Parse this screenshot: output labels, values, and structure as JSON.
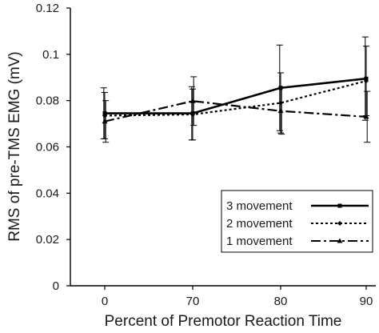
{
  "chart_data": {
    "type": "line",
    "title": "",
    "xlabel": "Percent of Premotor Reaction Time",
    "ylabel": "RMS of pre-TMS EMG (mV)",
    "categories": [
      "0",
      "70",
      "80",
      "90"
    ],
    "ylim": [
      0,
      0.12
    ],
    "yticks": [
      0,
      0.02,
      0.04,
      0.06,
      0.08,
      0.1,
      0.12
    ],
    "ytick_labels": [
      "0",
      "0.02",
      "0.04",
      "0.06",
      "0.08",
      "0.1",
      "0.12"
    ],
    "grid": false,
    "legend_position": "bottom-right",
    "series": [
      {
        "name": "3 movement",
        "values": [
          0.0745,
          0.0745,
          0.0855,
          0.0895
        ],
        "error": [
          0.011,
          0.0115,
          0.0185,
          0.018
        ],
        "line_style": "solid",
        "marker": "square",
        "color": "#000000"
      },
      {
        "name": "2 movement",
        "values": [
          0.0735,
          0.074,
          0.079,
          0.0885
        ],
        "error": [
          0.01,
          0.011,
          0.013,
          0.015
        ],
        "line_style": "dotted",
        "marker": "diamond",
        "color": "#000000"
      },
      {
        "name": "1 movement",
        "values": [
          0.071,
          0.0798,
          0.0755,
          0.073
        ],
        "error": [
          0.009,
          0.0105,
          0.01,
          0.011
        ],
        "line_style": "dashdot",
        "marker": "triangle",
        "color": "#000000"
      }
    ]
  }
}
